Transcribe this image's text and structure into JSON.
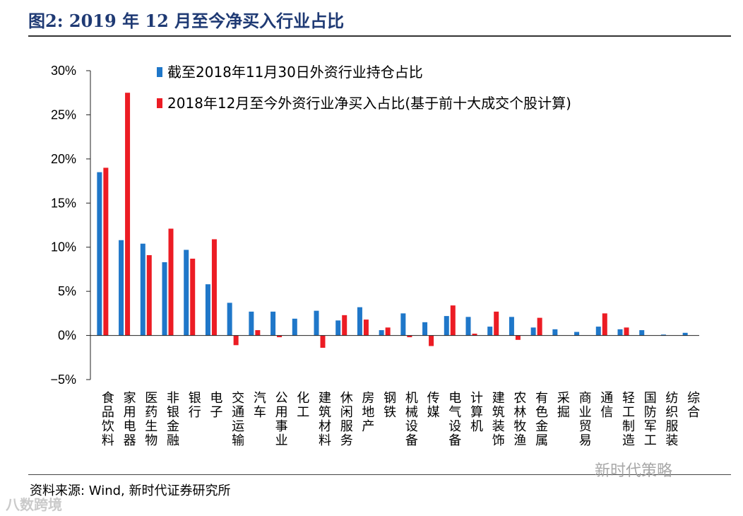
{
  "header": {
    "title": "图2:   2019 年 12 月至今净买入行业占比"
  },
  "footer": {
    "source": "资料来源:  Wind, 新时代证券研究所"
  },
  "watermarks": {
    "right": "新时代策略",
    "left": "八数跨境"
  },
  "chart_data": {
    "type": "bar",
    "title": "图2:   2019 年 12 月至今净买入行业占比",
    "xlabel": "",
    "ylabel": "",
    "ylim": [
      -5,
      30
    ],
    "yticks": [
      30,
      25,
      20,
      15,
      10,
      5,
      0,
      -5
    ],
    "ytick_labels": [
      "30%",
      "25%",
      "20%",
      "15%",
      "10%",
      "5%",
      "0%",
      "−5%"
    ],
    "legend_position": "top",
    "categories": [
      "食品饮料",
      "家用电器",
      "医药生物",
      "非银金融",
      "银行",
      "电子",
      "交通运输",
      "汽车",
      "公用事业",
      "化工",
      "建筑材料",
      "休闲服务",
      "房地产",
      "钢铁",
      "机械设备",
      "传媒",
      "电气设备",
      "计算机",
      "建筑装饰",
      "农林牧渔",
      "有色金属",
      "采掘",
      "商业贸易",
      "通信",
      "轻工制造",
      "国防军工",
      "纺织服装",
      "综合"
    ],
    "series": [
      {
        "name": "截至2018年11月30日外资行业持仓占比",
        "color": "#1f77c9",
        "values": [
          18.5,
          10.8,
          10.4,
          8.3,
          9.7,
          5.8,
          3.7,
          2.7,
          2.7,
          1.9,
          2.8,
          1.7,
          3.2,
          0.6,
          2.5,
          1.5,
          2.2,
          2.1,
          1.0,
          2.1,
          0.9,
          0.7,
          0.4,
          1.0,
          0.7,
          0.6,
          0.1,
          0.3
        ]
      },
      {
        "name": "2018年12月至今外资行业净买入占比(基于前十大成交个股计算)",
        "color": "#ec1c24",
        "values": [
          19.0,
          27.5,
          9.1,
          12.1,
          8.7,
          10.9,
          -1.1,
          0.6,
          -0.2,
          0.0,
          -1.4,
          2.3,
          1.8,
          0.9,
          -0.2,
          -1.2,
          3.4,
          0.2,
          2.7,
          -0.5,
          2.0,
          0.0,
          0.0,
          2.5,
          0.9,
          0.0,
          0.0,
          0.0
        ]
      }
    ]
  }
}
